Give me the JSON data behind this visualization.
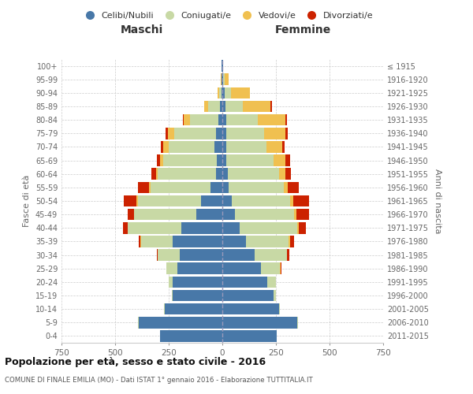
{
  "age_groups": [
    "0-4",
    "5-9",
    "10-14",
    "15-19",
    "20-24",
    "25-29",
    "30-34",
    "35-39",
    "40-44",
    "45-49",
    "50-54",
    "55-59",
    "60-64",
    "65-69",
    "70-74",
    "75-79",
    "80-84",
    "85-89",
    "90-94",
    "95-99",
    "100+"
  ],
  "birth_years": [
    "2011-2015",
    "2006-2010",
    "2001-2005",
    "1996-2000",
    "1991-1995",
    "1986-1990",
    "1981-1985",
    "1976-1980",
    "1971-1975",
    "1966-1970",
    "1961-1965",
    "1956-1960",
    "1951-1955",
    "1946-1950",
    "1941-1945",
    "1936-1940",
    "1931-1935",
    "1926-1930",
    "1921-1925",
    "1916-1920",
    "≤ 1915"
  ],
  "males": {
    "celibe": [
      290,
      390,
      270,
      230,
      230,
      210,
      200,
      230,
      190,
      120,
      100,
      55,
      30,
      25,
      35,
      30,
      20,
      10,
      5,
      3,
      2
    ],
    "coniugato": [
      0,
      2,
      3,
      5,
      20,
      50,
      100,
      150,
      250,
      290,
      295,
      280,
      270,
      250,
      215,
      195,
      130,
      55,
      10,
      2,
      0
    ],
    "vedovo": [
      0,
      0,
      0,
      0,
      0,
      0,
      0,
      1,
      2,
      3,
      5,
      8,
      10,
      15,
      25,
      30,
      30,
      20,
      8,
      1,
      0
    ],
    "divorziato": [
      0,
      0,
      0,
      0,
      0,
      2,
      5,
      10,
      20,
      30,
      60,
      50,
      20,
      15,
      12,
      10,
      5,
      0,
      0,
      0,
      0
    ]
  },
  "females": {
    "nubile": [
      255,
      350,
      265,
      240,
      210,
      180,
      150,
      110,
      80,
      60,
      45,
      30,
      25,
      20,
      20,
      20,
      20,
      15,
      10,
      5,
      2
    ],
    "coniugata": [
      0,
      3,
      5,
      10,
      40,
      90,
      150,
      200,
      270,
      275,
      270,
      255,
      240,
      220,
      185,
      175,
      145,
      80,
      30,
      5,
      0
    ],
    "vedova": [
      0,
      0,
      0,
      0,
      0,
      1,
      2,
      5,
      8,
      10,
      15,
      20,
      30,
      55,
      75,
      100,
      130,
      130,
      90,
      20,
      2
    ],
    "divorziata": [
      0,
      0,
      0,
      0,
      1,
      3,
      10,
      20,
      30,
      60,
      75,
      50,
      25,
      20,
      12,
      10,
      5,
      5,
      0,
      0,
      0
    ]
  },
  "colors": {
    "celibe_nubile": "#4878a8",
    "coniugato_a": "#c8d9a5",
    "vedovo_a": "#f0c050",
    "divorziato_a": "#cc2200"
  },
  "xlim": 750,
  "title": "Popolazione per età, sesso e stato civile - 2016",
  "subtitle": "COMUNE DI FINALE EMILIA (MO) - Dati ISTAT 1° gennaio 2016 - Elaborazione TUTTITALIA.IT",
  "ylabel_left": "Fasce di età",
  "ylabel_right": "Anni di nascita",
  "xlabel_left": "Maschi",
  "xlabel_right": "Femmine",
  "background_color": "#ffffff",
  "grid_color": "#cccccc"
}
